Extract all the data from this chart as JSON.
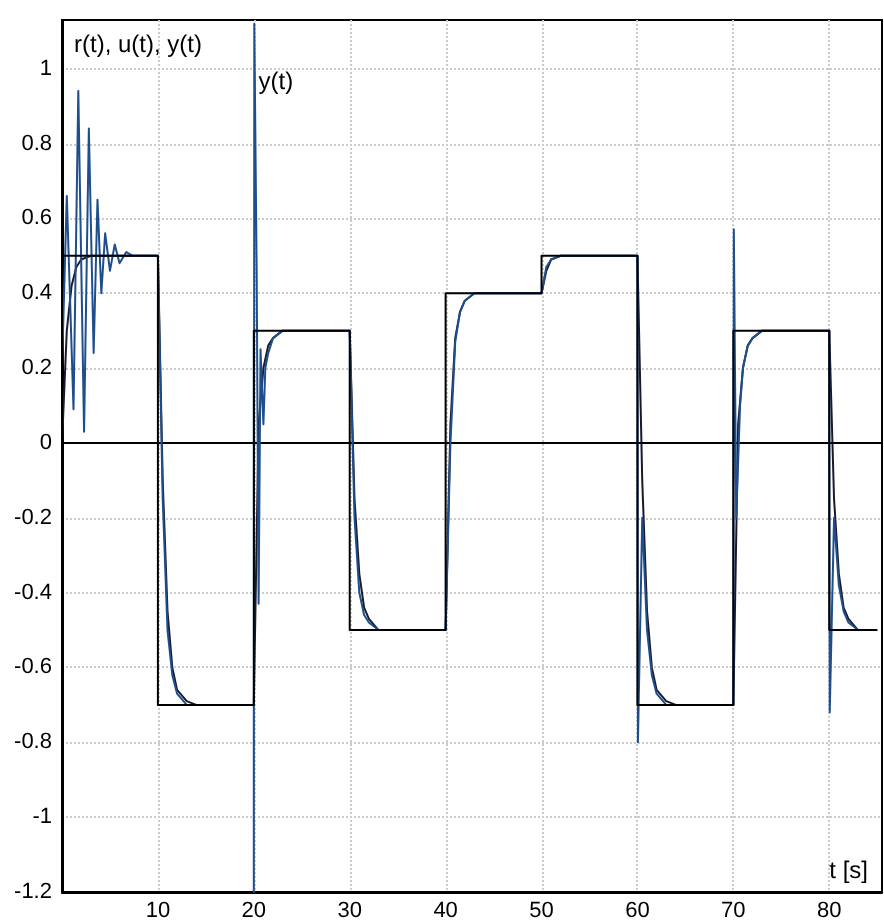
{
  "chart_data": {
    "type": "line",
    "ylabel": "r(t), u(t), y(t)",
    "xlabel": "t [s]",
    "annotations": [
      {
        "text": "y(t)",
        "x": 20.5,
        "y": 1.0
      }
    ],
    "series": [
      {
        "color": "#000000",
        "x": [
          0,
          0,
          10,
          10,
          20,
          20,
          30,
          30,
          40,
          40,
          50,
          50,
          60,
          60,
          70,
          70,
          80,
          80,
          85
        ],
        "values": [
          0,
          0.5,
          0.5,
          -0.7,
          -0.7,
          0.3,
          0.3,
          -0.5,
          -0.5,
          0.4,
          0.4,
          0.5,
          0.5,
          -0.7,
          -0.7,
          0.3,
          0.3,
          -0.5,
          -0.5
        ]
      },
      {
        "color": "#1a1a2e",
        "x": [
          0,
          0.5,
          1,
          1.5,
          2,
          3,
          10,
          10.5,
          11,
          11.5,
          12,
          13,
          14,
          20,
          20.5,
          21,
          21.5,
          22,
          23,
          30,
          30.5,
          31,
          31.5,
          32,
          33,
          40,
          40.5,
          41,
          41.5,
          42,
          43,
          50,
          50.5,
          51,
          52,
          60,
          60.5,
          61,
          61.5,
          62,
          63,
          64,
          70,
          70.5,
          71,
          71.5,
          72,
          73,
          80,
          80.5,
          81,
          81.5,
          82,
          83,
          85
        ],
        "values": [
          0,
          0.3,
          0.42,
          0.47,
          0.49,
          0.5,
          0.5,
          -0.1,
          -0.45,
          -0.6,
          -0.66,
          -0.69,
          -0.7,
          -0.7,
          0.05,
          0.2,
          0.26,
          0.28,
          0.3,
          0.3,
          -0.15,
          -0.35,
          -0.44,
          -0.47,
          -0.5,
          -0.5,
          0.05,
          0.28,
          0.35,
          0.38,
          0.4,
          0.4,
          0.46,
          0.49,
          0.5,
          0.5,
          -0.1,
          -0.45,
          -0.6,
          -0.66,
          -0.69,
          -0.7,
          -0.7,
          0.05,
          0.2,
          0.26,
          0.28,
          0.3,
          0.3,
          -0.15,
          -0.35,
          -0.44,
          -0.47,
          -0.5,
          -0.5
        ]
      },
      {
        "color": "#1f4e8c",
        "x": [
          0,
          0.5,
          1.2,
          1.7,
          2.3,
          2.8,
          3.3,
          3.7,
          4.1,
          4.5,
          5,
          5.5,
          6,
          6.7,
          7.4,
          10,
          10.5,
          11,
          11.5,
          12,
          13,
          20,
          20,
          20.05,
          20.3,
          20.5,
          20.7,
          21,
          21.2,
          21.5,
          22,
          23,
          30,
          30.5,
          31,
          31.5,
          32,
          33,
          40,
          40.5,
          41,
          41.5,
          42,
          43,
          50,
          50.5,
          51,
          52,
          60,
          60.05,
          60.5,
          61,
          61.5,
          62,
          63,
          70,
          70.05,
          70.3,
          70.7,
          71,
          71.5,
          72,
          73,
          80,
          80.05,
          80.5,
          81,
          81.5,
          82,
          83,
          85
        ],
        "values": [
          0.2,
          0.66,
          0.09,
          0.94,
          0.03,
          0.84,
          0.24,
          0.65,
          0.4,
          0.56,
          0.46,
          0.53,
          0.48,
          0.51,
          0.5,
          0.5,
          -0.15,
          -0.5,
          -0.62,
          -0.67,
          -0.7,
          -0.7,
          -1.2,
          1.12,
          0.45,
          -0.43,
          0.25,
          0.05,
          0.2,
          0.24,
          0.28,
          0.3,
          0.3,
          -0.2,
          -0.4,
          -0.46,
          -0.48,
          -0.5,
          -0.5,
          0,
          0.27,
          0.35,
          0.38,
          0.4,
          0.4,
          0.47,
          0.49,
          0.5,
          0.5,
          -0.8,
          -0.2,
          -0.5,
          -0.62,
          -0.67,
          -0.7,
          -0.7,
          0.57,
          -0.2,
          0.1,
          0.2,
          0.26,
          0.28,
          0.3,
          0.3,
          -0.72,
          -0.2,
          -0.38,
          -0.45,
          -0.48,
          -0.5,
          -0.5
        ]
      }
    ],
    "xlim": [
      0,
      85.5
    ],
    "xticks": [
      10,
      20,
      30,
      40,
      50,
      60,
      70,
      80
    ],
    "ylim": [
      -1.2,
      1.13
    ],
    "yticks": [
      -1.2,
      -1,
      -0.8,
      -0.6,
      -0.4,
      -0.2,
      0,
      0.2,
      0.4,
      0.6,
      0.8,
      1
    ],
    "ref_lines": [
      {
        "axis": "y",
        "value": 0,
        "color": "#000000"
      }
    ],
    "grid": true,
    "marker": "none",
    "line_style": "solid"
  }
}
